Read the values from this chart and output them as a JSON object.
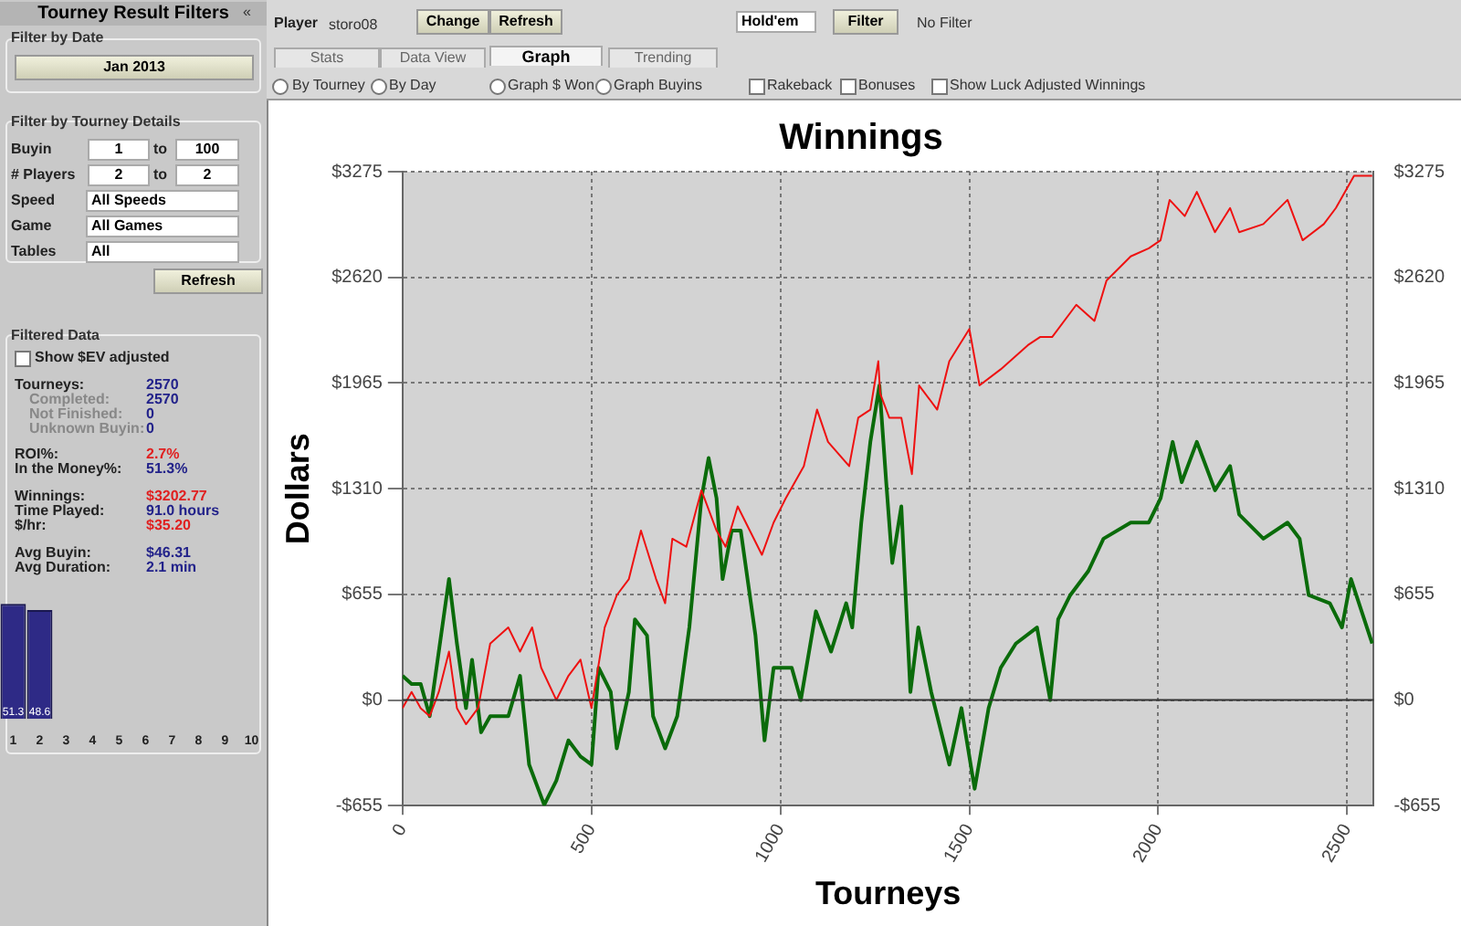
{
  "chart_data": [
    {
      "type": "line",
      "title": "Winnings",
      "xlabel": "Tourneys",
      "ylabel": "Dollars",
      "xlim": [
        0,
        2570
      ],
      "xticks": [
        0,
        500,
        1000,
        1500,
        2000,
        2500
      ],
      "ylim": [
        -655,
        3275
      ],
      "yticks": [
        {
          "value": -655,
          "label": "-$655"
        },
        {
          "value": 0,
          "label": "$0"
        },
        {
          "value": 655,
          "label": "$655"
        },
        {
          "value": 1310,
          "label": "$1310"
        },
        {
          "value": 1965,
          "label": "$1965"
        },
        {
          "value": 2620,
          "label": "$2620"
        },
        {
          "value": 3275,
          "label": "$3275"
        }
      ],
      "y2lim": [
        -655,
        3275
      ],
      "y2ticks": [
        {
          "value": -655,
          "label": "-$655"
        },
        {
          "value": 0,
          "label": "$0"
        },
        {
          "value": 655,
          "label": "$655"
        },
        {
          "value": 1310,
          "label": "$1310"
        },
        {
          "value": 1965,
          "label": "$1965"
        },
        {
          "value": 2620,
          "label": "$2620"
        },
        {
          "value": 3275,
          "label": "$3275"
        }
      ],
      "grid": true,
      "marker": "none",
      "legend": false,
      "ref_lines": [
        {
          "axis": "y",
          "value": 0,
          "color": "#333333"
        }
      ],
      "series": [
        {
          "color": "#ee1111",
          "x": [
            0,
            24,
            48,
            72,
            96,
            123,
            144,
            168,
            200,
            232,
            280,
            311,
            343,
            367,
            407,
            439,
            471,
            500,
            535,
            567,
            599,
            631,
            671,
            695,
            714,
            751,
            791,
            831,
            855,
            887,
            919,
            951,
            982,
            1014,
            1062,
            1097,
            1126,
            1182,
            1206,
            1238,
            1259,
            1264,
            1288,
            1320,
            1348,
            1367,
            1415,
            1447,
            1500,
            1527,
            1583,
            1655,
            1687,
            1719,
            1783,
            1831,
            1863,
            1927,
            1975,
            2006,
            2030,
            2070,
            2102,
            2150,
            2190,
            2214,
            2278,
            2342,
            2382,
            2438,
            2470,
            2518,
            2566
          ],
          "values": [
            -50,
            50,
            -50,
            -100,
            50,
            300,
            -50,
            -150,
            -50,
            350,
            450,
            300,
            450,
            200,
            0,
            150,
            250,
            -50,
            450,
            650,
            750,
            1050,
            750,
            600,
            1000,
            950,
            1300,
            1050,
            950,
            1200,
            1050,
            900,
            1100,
            1250,
            1450,
            1800,
            1600,
            1450,
            1750,
            1800,
            2100,
            1900,
            1750,
            1750,
            1400,
            1950,
            1800,
            2100,
            2300,
            1950,
            2050,
            2200,
            2250,
            2250,
            2450,
            2350,
            2600,
            2750,
            2800,
            2850,
            3100,
            3000,
            3150,
            2900,
            3050,
            2900,
            2950,
            3100,
            2850,
            2950,
            3050,
            3250,
            3250
          ]
        },
        {
          "color": "#0a6b0a",
          "x": [
            0,
            24,
            48,
            72,
            96,
            123,
            144,
            168,
            184,
            208,
            232,
            280,
            311,
            335,
            375,
            407,
            439,
            471,
            500,
            519,
            551,
            567,
            599,
            615,
            647,
            663,
            695,
            727,
            759,
            791,
            810,
            831,
            847,
            871,
            895,
            934,
            958,
            982,
            1030,
            1054,
            1094,
            1134,
            1174,
            1190,
            1214,
            1238,
            1262,
            1280,
            1296,
            1320,
            1344,
            1365,
            1399,
            1447,
            1479,
            1514,
            1551,
            1583,
            1623,
            1679,
            1714,
            1735,
            1767,
            1815,
            1855,
            1927,
            1975,
            2006,
            2038,
            2062,
            2102,
            2150,
            2190,
            2214,
            2278,
            2342,
            2374,
            2398,
            2454,
            2486,
            2510,
            2566
          ],
          "values": [
            150,
            100,
            100,
            -100,
            300,
            750,
            350,
            -50,
            250,
            -200,
            -100,
            -100,
            150,
            -400,
            -650,
            -500,
            -250,
            -350,
            -400,
            200,
            50,
            -300,
            50,
            500,
            400,
            -100,
            -300,
            -100,
            450,
            1250,
            1500,
            1250,
            750,
            1050,
            1050,
            400,
            -250,
            200,
            200,
            0,
            550,
            300,
            600,
            450,
            1100,
            1600,
            1950,
            1350,
            850,
            1200,
            50,
            450,
            50,
            -400,
            -50,
            -550,
            -50,
            200,
            350,
            450,
            0,
            500,
            650,
            800,
            1000,
            1100,
            1100,
            1250,
            1600,
            1350,
            1600,
            1300,
            1450,
            1150,
            1000,
            1100,
            1000,
            650,
            600,
            450,
            750,
            350
          ]
        }
      ]
    },
    {
      "type": "bar",
      "categories": [
        "1",
        "2",
        "3",
        "4",
        "5",
        "6",
        "7",
        "8",
        "9",
        "10"
      ],
      "values": [
        51.3,
        48.6,
        null,
        null,
        null,
        null,
        null,
        null,
        null,
        null
      ],
      "color": "#2e2a86",
      "data_labels": true,
      "tick_labels": "x"
    },
    {
      "type": "other",
      "annotations": [
        "Tourney Result Filters",
        "«",
        "Filter by Date",
        "Jan 2013",
        "Filter by Tourney Details",
        "Buyin",
        "1",
        "to",
        "100",
        "# Players",
        "2",
        "to",
        "2",
        "Speed",
        "All Speeds",
        "Game",
        "All Games",
        "Tables",
        "All",
        "Refresh",
        "Filtered Data",
        "Show $EV adjusted",
        "Tourneys:",
        "2570",
        "Completed:",
        "2570",
        "Not Finished:",
        "0",
        "Unknown Buyin:",
        "0",
        "ROI%:",
        "2.7%",
        "In the Money%:",
        "51.3%",
        "Winnings:",
        "$3202.77",
        "Time Played:",
        "91.0 hours",
        "$/hr:",
        "$35.20",
        "Avg Buyin:",
        "$46.31",
        "Avg Duration:",
        "2.1 min",
        "Player",
        "storo08",
        "Change",
        "Refresh",
        "Hold'em",
        "Filter",
        "No Filter",
        "Stats",
        "Data View",
        "Graph",
        "Trending",
        "By Tourney",
        "By Day",
        "Graph $ Won",
        "Graph Buyins",
        "Rakeback",
        "Bonuses",
        "Show Luck Adjusted Winnings"
      ]
    }
  ]
}
